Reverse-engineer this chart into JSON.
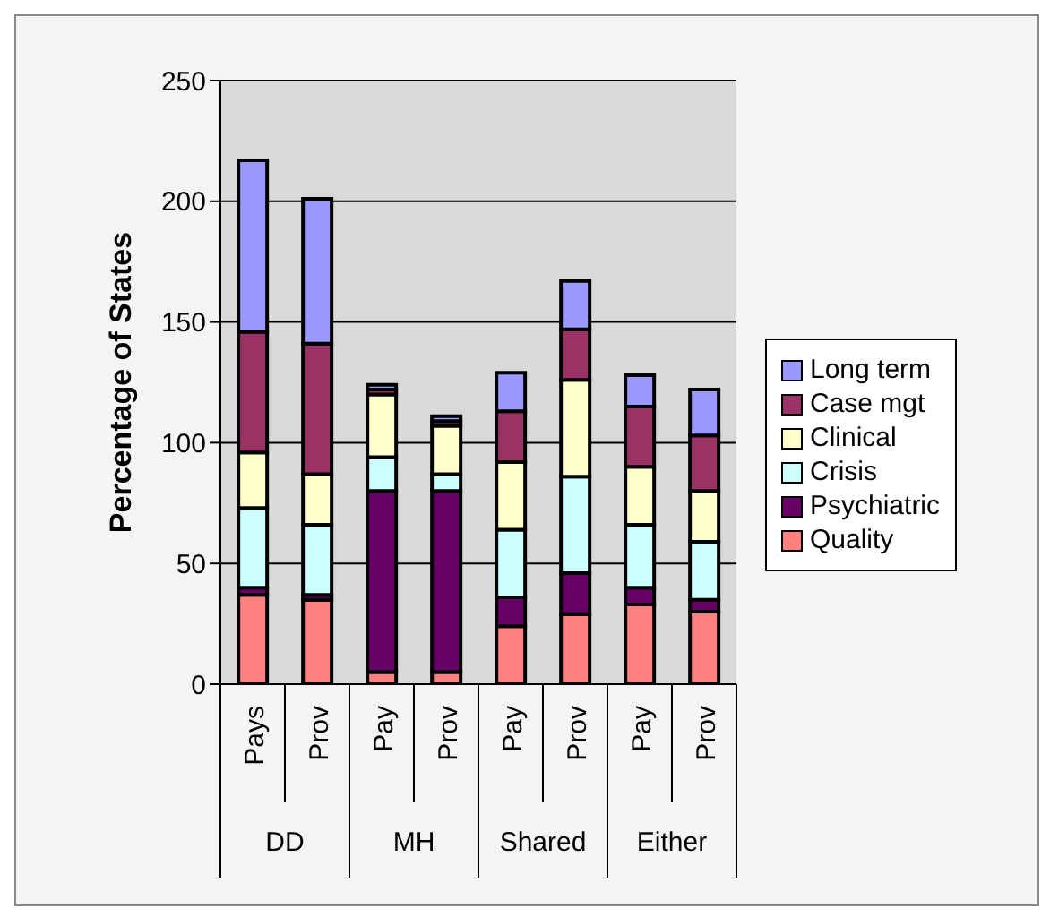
{
  "chart_data": {
    "type": "bar",
    "stacked": true,
    "ylabel": "Percentage of States",
    "categories": [
      "Pays",
      "Prov",
      "Pay",
      "Prov",
      "Pay",
      "Prov",
      "Pay",
      "Prov"
    ],
    "annotations": [
      "DD",
      "MH",
      "Shared",
      "Either"
    ],
    "series": [
      {
        "name": "Quality",
        "color": "#ff8080",
        "values": [
          37,
          35,
          5,
          5,
          24,
          29,
          33,
          30
        ]
      },
      {
        "name": "Psychiatric",
        "color": "#660066",
        "values": [
          3,
          2,
          75,
          75,
          12,
          17,
          7,
          5
        ]
      },
      {
        "name": "Crisis",
        "color": "#ccffff",
        "values": [
          33,
          29,
          14,
          7,
          28,
          40,
          26,
          24
        ]
      },
      {
        "name": "Clinical",
        "color": "#ffffcc",
        "values": [
          23,
          21,
          26,
          20,
          28,
          40,
          24,
          21
        ]
      },
      {
        "name": "Case mgt",
        "color": "#993366",
        "values": [
          50,
          54,
          2,
          2,
          21,
          21,
          25,
          23
        ]
      },
      {
        "name": "Long term",
        "color": "#9999ff",
        "values": [
          71,
          60,
          2,
          2,
          16,
          20,
          13,
          19
        ]
      }
    ],
    "ylim": [
      0,
      250
    ],
    "yticks": [
      0,
      50,
      100,
      150,
      200,
      250
    ],
    "grid": "y",
    "legend": "right"
  }
}
